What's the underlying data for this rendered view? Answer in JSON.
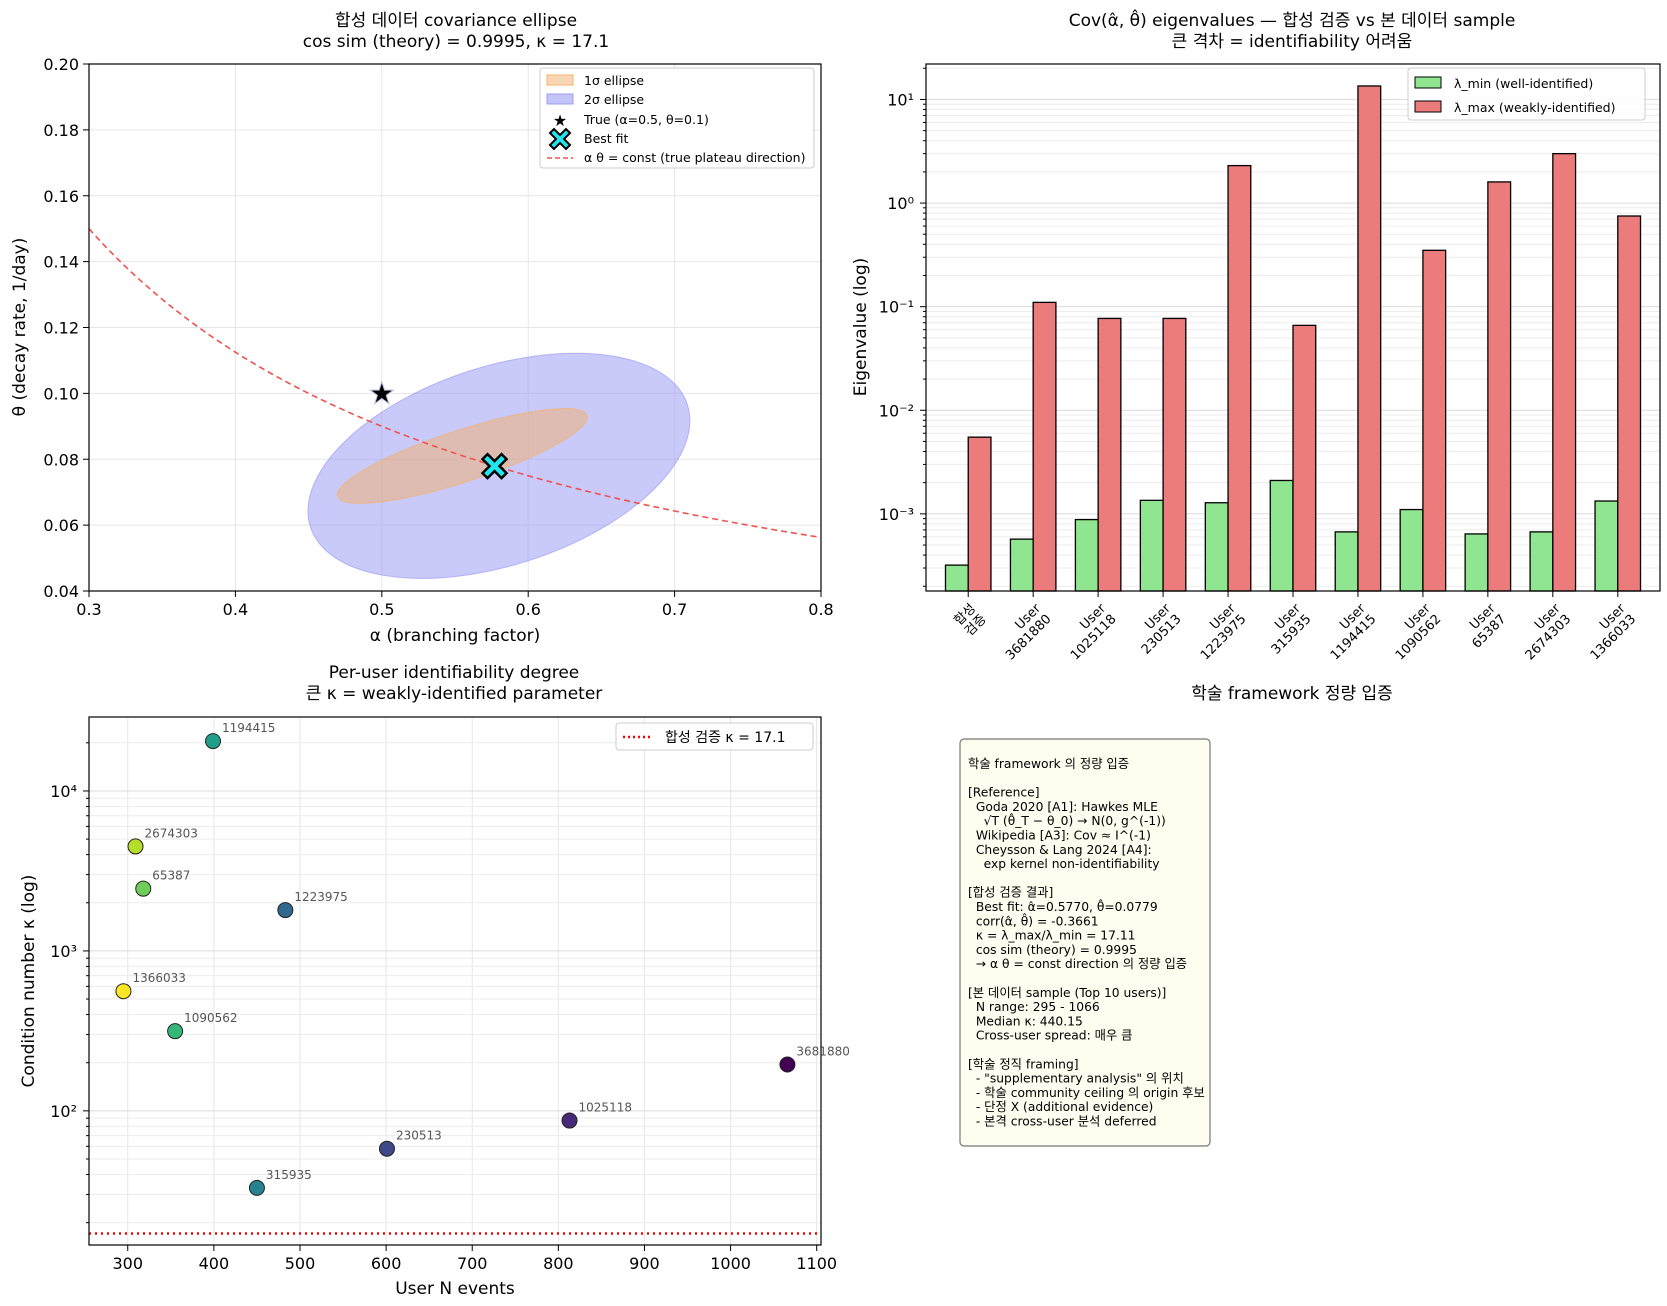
{
  "panels": {
    "ellipse": {
      "title_line1": "합성 데이터 covariance ellipse",
      "title_line2": "cos sim (theory) = 0.9995, κ = 17.1",
      "xlabel": "α (branching factor)",
      "ylabel": "θ (decay rate, 1/day)",
      "xticks": [
        "0.3",
        "0.4",
        "0.5",
        "0.6",
        "0.7",
        "0.8"
      ],
      "yticks": [
        "0.04",
        "0.06",
        "0.08",
        "0.10",
        "0.12",
        "0.14",
        "0.16",
        "0.18",
        "0.20"
      ],
      "legend": [
        "1σ ellipse",
        "2σ ellipse",
        "True (α=0.5, θ=0.1)",
        "Best fit",
        "α θ = const (true plateau direction)"
      ]
    },
    "eigen": {
      "title_line1": "Cov(α̂, θ̂) eigenvalues — 합성 검증 vs 본 데이터 sample",
      "title_line2": "큰 격차 = identifiability 어려움",
      "xlabel": "학술 framework 정량 입증",
      "ylabel": "Eigenvalue (log)",
      "yticks": [
        "10¹",
        "10⁰",
        "10⁻¹",
        "10⁻²",
        "10⁻³"
      ],
      "legend": [
        "λ_min (well-identified)",
        "λ_max (weakly-identified)"
      ],
      "categories": [
        "합성\n검증",
        "User\n3681880",
        "User\n1025118",
        "User\n230513",
        "User\n1223975",
        "User\n315935",
        "User\n1194415",
        "User\n1090562",
        "User\n65387",
        "User\n2674303",
        "User\n1366033"
      ]
    },
    "cond": {
      "title_line1": "Per-user identifiability degree",
      "title_line2": "큰 κ = weakly-identified parameter",
      "xlabel": "User N events",
      "ylabel": "Condition number κ (log)",
      "xticks": [
        "300",
        "400",
        "500",
        "600",
        "700",
        "800",
        "900",
        "1000",
        "1100"
      ],
      "yticks": [
        "10⁴",
        "10³",
        "10²"
      ],
      "legend": "합성 검증 κ = 17.1"
    },
    "notes": {
      "lines": [
        "학술 framework 의 정량 입증",
        "",
        "[Reference]",
        "  Goda 2020 [A1]: Hawkes MLE",
        "    √T (θ̂_T − θ_0) → N(0, g^(-1))",
        "  Wikipedia [A3]: Cov ≈ I^(-1)",
        "  Cheysson & Lang 2024 [A4]:",
        "    exp kernel non-identifiability",
        "",
        "[합성 검증 결과]",
        "  Best fit: α̂=0.5770, θ̂=0.0779",
        "  corr(α̂, θ̂) = -0.3661",
        "  κ = λ_max/λ_min = 17.11",
        "  cos sim (theory) = 0.9995",
        "  → α θ = const direction 의 정량 입증",
        "",
        "[본 데이터 sample (Top 10 users)]",
        "  N range: 295 - 1066",
        "  Median κ: 440.15",
        "  Cross-user spread: 매우 큼",
        "",
        "[학술 정직 framing]",
        "  - \"supplementary analysis\" 의 위치",
        "  - 학술 community ceiling 의 origin 후보",
        "  - 단정 X (additional evidence)",
        "  - 본격 cross-user 분석 deferred"
      ]
    }
  },
  "colors": {
    "one_sigma": "#f5b06a",
    "two_sigma": "#9c9cf5",
    "plateau_line": "#ef5350",
    "true_star": "#e00000",
    "best_fit": "#22e6ee",
    "lambda_min": "#90e690",
    "lambda_max": "#ec7b7b",
    "ref_line": "#ff0000",
    "note_bg": "#fdfdf0"
  },
  "chart_data": [
    {
      "type": "scatter",
      "title": "합성 데이터 covariance ellipse\ncos sim (theory) = 0.9995, κ = 17.1",
      "xlabel": "α (branching factor)",
      "ylabel": "θ (decay rate, 1/day)",
      "xlim": [
        0.3,
        0.8
      ],
      "ylim": [
        0.04,
        0.2
      ],
      "grid": true,
      "legend_position": "top-right",
      "true_point": {
        "x": 0.5,
        "y": 0.1
      },
      "best_fit": {
        "x": 0.577,
        "y": 0.0779
      },
      "ellipse_1sigma": {
        "center": [
          0.577,
          0.0779
        ],
        "x_extent": [
          0.46,
          0.65
        ],
        "y_extent": [
          0.065,
          0.097
        ]
      },
      "ellipse_2sigma": {
        "center": [
          0.577,
          0.0779
        ],
        "x_extent": [
          0.435,
          0.725
        ],
        "y_extent": [
          0.04,
          0.116
        ]
      },
      "curve": {
        "name": "α θ = const (true plateau direction)",
        "const": 0.045
      }
    },
    {
      "type": "bar",
      "title": "Cov(α̂, θ̂) eigenvalues — 합성 검증 vs 본 데이터 sample\n큰 격차 = identifiability 어려움",
      "xlabel": "학술 framework 정량 입증",
      "ylabel": "Eigenvalue (log)",
      "yscale": "log",
      "ylim": [
        0.00018,
        22
      ],
      "legend_position": "top-right",
      "categories": [
        "합성 검증",
        "User 3681880",
        "User 1025118",
        "User 230513",
        "User 1223975",
        "User 315935",
        "User 1194415",
        "User 1090562",
        "User 65387",
        "User 2674303",
        "User 1366033"
      ],
      "series": [
        {
          "name": "λ_min (well-identified)",
          "values": [
            0.00032,
            0.00057,
            0.00088,
            0.00135,
            0.00128,
            0.0021,
            0.00067,
            0.0011,
            0.00064,
            0.00067,
            0.00133
          ]
        },
        {
          "name": "λ_max (weakly-identified)",
          "values": [
            0.0055,
            0.11,
            0.077,
            0.077,
            2.3,
            0.066,
            13.5,
            0.35,
            1.6,
            3.0,
            0.75
          ]
        }
      ]
    },
    {
      "type": "scatter",
      "title": "Per-user identifiability degree\n큰 κ = weakly-identified parameter",
      "xlabel": "User N events",
      "ylabel": "Condition number κ (log)",
      "yscale": "log",
      "xlim": [
        255,
        1105
      ],
      "ylim": [
        14.5,
        29000
      ],
      "grid": true,
      "legend_position": "top-right",
      "reference_line": {
        "name": "합성 검증 κ = 17.1",
        "y": 17.1
      },
      "points": [
        {
          "label": "1194415",
          "x": 399,
          "y": 20500
        },
        {
          "label": "2674303",
          "x": 309,
          "y": 4500
        },
        {
          "label": "65387",
          "x": 318,
          "y": 2450
        },
        {
          "label": "1223975",
          "x": 483,
          "y": 1800
        },
        {
          "label": "1366033",
          "x": 295,
          "y": 560
        },
        {
          "label": "1090562",
          "x": 355,
          "y": 315
        },
        {
          "label": "3681880",
          "x": 1066,
          "y": 195
        },
        {
          "label": "1025118",
          "x": 813,
          "y": 87
        },
        {
          "label": "230513",
          "x": 601,
          "y": 58
        },
        {
          "label": "315935",
          "x": 450,
          "y": 33
        }
      ]
    }
  ]
}
